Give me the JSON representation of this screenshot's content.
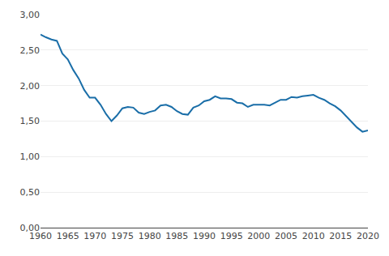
{
  "chart_data": {
    "type": "line",
    "x": [
      1960,
      1961,
      1962,
      1963,
      1964,
      1965,
      1966,
      1967,
      1968,
      1969,
      1970,
      1971,
      1972,
      1973,
      1974,
      1975,
      1976,
      1977,
      1978,
      1979,
      1980,
      1981,
      1982,
      1983,
      1984,
      1985,
      1986,
      1987,
      1988,
      1989,
      1990,
      1991,
      1992,
      1993,
      1994,
      1995,
      1996,
      1997,
      1998,
      1999,
      2000,
      2001,
      2002,
      2003,
      2004,
      2005,
      2006,
      2007,
      2008,
      2009,
      2010,
      2011,
      2012,
      2013,
      2014,
      2015,
      2016,
      2017,
      2018,
      2019,
      2020
    ],
    "values": [
      2.72,
      2.68,
      2.65,
      2.63,
      2.45,
      2.37,
      2.22,
      2.1,
      1.94,
      1.83,
      1.83,
      1.73,
      1.6,
      1.5,
      1.58,
      1.68,
      1.7,
      1.69,
      1.62,
      1.6,
      1.63,
      1.65,
      1.72,
      1.73,
      1.7,
      1.64,
      1.6,
      1.59,
      1.69,
      1.72,
      1.78,
      1.8,
      1.85,
      1.82,
      1.82,
      1.81,
      1.76,
      1.75,
      1.7,
      1.73,
      1.73,
      1.73,
      1.72,
      1.76,
      1.8,
      1.8,
      1.84,
      1.83,
      1.85,
      1.86,
      1.87,
      1.83,
      1.8,
      1.75,
      1.71,
      1.65,
      1.57,
      1.49,
      1.41,
      1.35,
      1.37
    ],
    "color": "#1a6ea8",
    "xlim": [
      1960,
      2020
    ],
    "xticks": [
      1960,
      1965,
      1970,
      1975,
      1980,
      1985,
      1990,
      1995,
      2000,
      2005,
      2010,
      2015,
      2020
    ],
    "ylim": [
      0.0,
      3.0
    ],
    "yticks": [
      {
        "value": 0.0,
        "label": "0,00"
      },
      {
        "value": 0.5,
        "label": "0,50"
      },
      {
        "value": 1.0,
        "label": "1,00"
      },
      {
        "value": 1.5,
        "label": "1,50"
      },
      {
        "value": 2.0,
        "label": "2,00"
      },
      {
        "value": 2.5,
        "label": "2,50"
      },
      {
        "value": 3.0,
        "label": "3,00"
      }
    ],
    "grid": true
  }
}
